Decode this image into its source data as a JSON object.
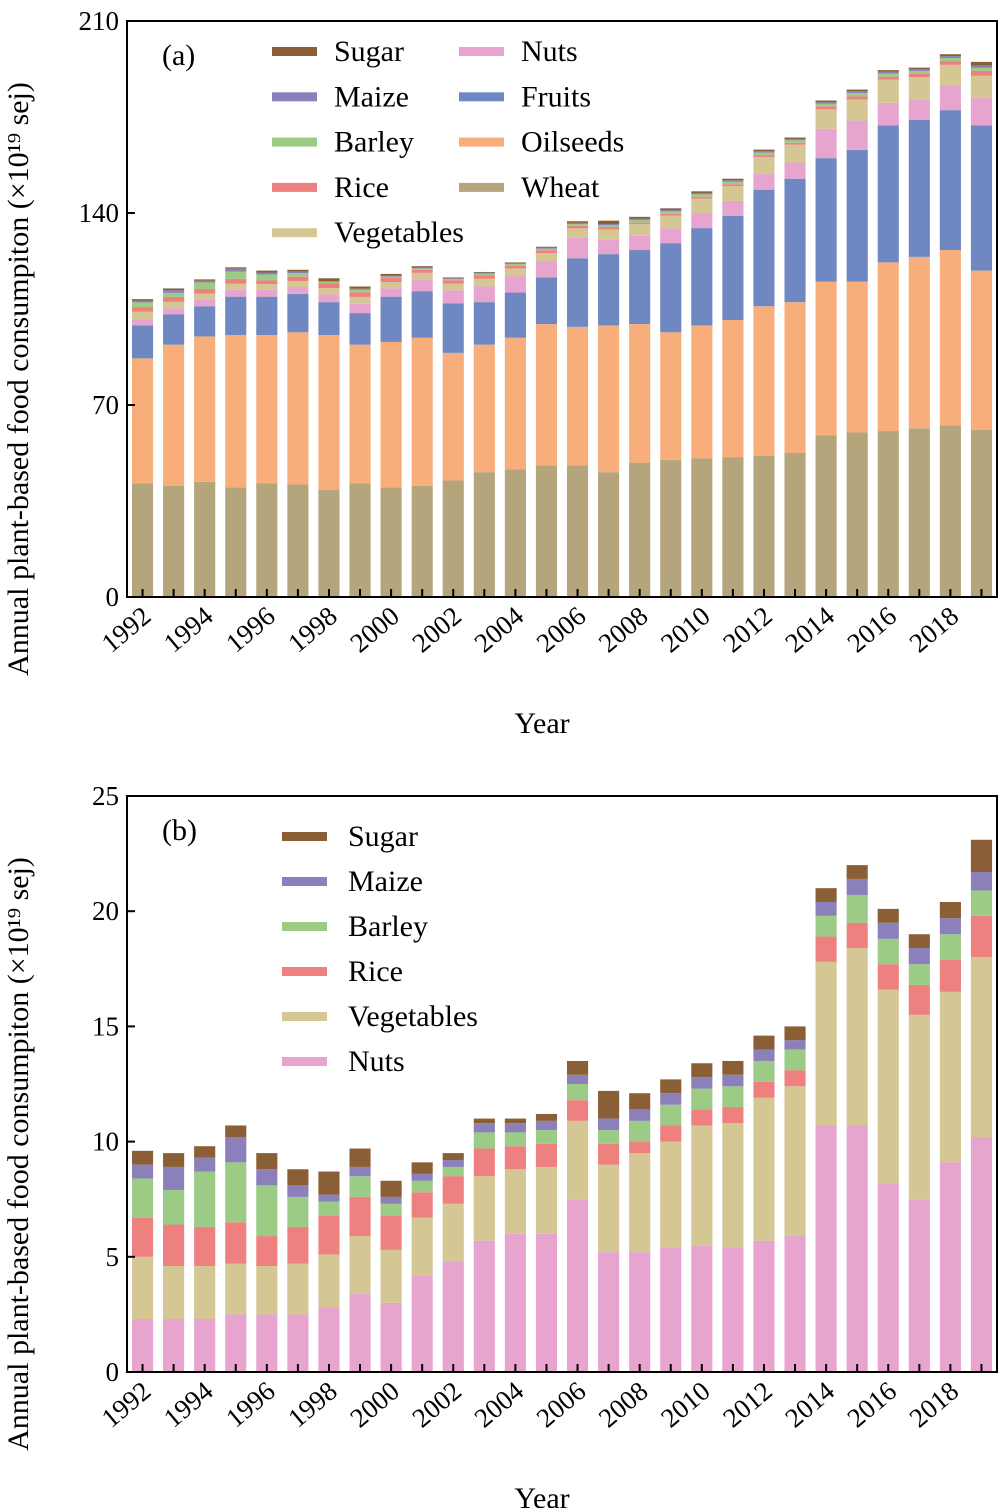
{
  "chart_data": [
    {
      "type": "bar",
      "stacked": true,
      "panel_label": "(a)",
      "xlabel": "Year",
      "ylabel": "Annual plant-based food consumpiton (×10¹⁹ sej)",
      "ylim": [
        0,
        210
      ],
      "yticks": [
        "0",
        "70",
        "140",
        "210"
      ],
      "xtick_labels": [
        "1992",
        "1994",
        "1996",
        "1998",
        "2000",
        "2002",
        "2004",
        "2006",
        "2008",
        "2010",
        "2012",
        "2014",
        "2016",
        "2018"
      ],
      "grid": false,
      "legend_position": "top-left",
      "categories": [
        1992,
        1993,
        1994,
        1995,
        1996,
        1997,
        1998,
        1999,
        2000,
        2001,
        2002,
        2003,
        2004,
        2005,
        2006,
        2007,
        2008,
        2009,
        2010,
        2011,
        2012,
        2013,
        2014,
        2015,
        2016,
        2017,
        2018,
        2019
      ],
      "series": [
        {
          "name": "Wheat",
          "color": "#b5a57c",
          "values": [
            41.5,
            40.5,
            42,
            40,
            41.5,
            41,
            39,
            41.5,
            40,
            40.5,
            42.5,
            45.5,
            46.5,
            48,
            48,
            45.5,
            49,
            50,
            50.5,
            51,
            51.5,
            52.5,
            59,
            60,
            60.5,
            61.5,
            62.5,
            61
          ]
        },
        {
          "name": "Oilseeds",
          "color": "#f8ae7b",
          "values": [
            45.5,
            51.5,
            53,
            55.5,
            54,
            55.5,
            56.5,
            50.5,
            53,
            54,
            46.5,
            46.5,
            48,
            51.5,
            50.5,
            53.5,
            50.5,
            46.5,
            48.5,
            50,
            54.5,
            55,
            56,
            55,
            61.5,
            62.5,
            64,
            58
          ]
        },
        {
          "name": "Fruits",
          "color": "#7088c1",
          "values": [
            12,
            11,
            11,
            14,
            14,
            14,
            12,
            11.5,
            16.5,
            17,
            18,
            15.5,
            16.5,
            17,
            25,
            26,
            27,
            32.5,
            35.5,
            38,
            42.5,
            45,
            45,
            48,
            50,
            50,
            51,
            53
          ]
        },
        {
          "name": "Nuts",
          "color": "#e6a4ce",
          "values": [
            2.3,
            2.3,
            2.3,
            2.5,
            2.5,
            2.5,
            2.8,
            3.4,
            3,
            4.2,
            4.8,
            5.7,
            6,
            6,
            7.5,
            5.2,
            5.2,
            5.4,
            5.5,
            5.4,
            5.7,
            5.9,
            10.7,
            10.7,
            8.2,
            7.5,
            9.1,
            10.2
          ]
        },
        {
          "name": "Vegetables",
          "color": "#d4c794",
          "values": [
            2.7,
            2.3,
            2.3,
            2.2,
            2.1,
            2.2,
            2.3,
            2.5,
            2.3,
            2.5,
            2.5,
            2.8,
            2.8,
            2.9,
            3.4,
            3.8,
            4.3,
            4.6,
            5.2,
            5.4,
            6.2,
            6.5,
            7.1,
            7.7,
            8.4,
            8,
            7.4,
            7.8
          ]
        },
        {
          "name": "Rice",
          "color": "#ef8080",
          "values": [
            1.7,
            1.8,
            1.7,
            1.8,
            1.3,
            1.6,
            1.7,
            1.7,
            1.5,
            1.1,
            1.2,
            1.2,
            1,
            1,
            0.9,
            0.9,
            0.5,
            0.7,
            0.7,
            0.7,
            0.7,
            0.7,
            1.1,
            1.1,
            1.1,
            1.3,
            1.4,
            1.8
          ]
        },
        {
          "name": "Barley",
          "color": "#9ccb86",
          "values": [
            1.7,
            1.5,
            2.4,
            2.6,
            2.2,
            1.3,
            0.6,
            0.9,
            0.5,
            0.5,
            0.4,
            0.7,
            0.6,
            0.6,
            0.7,
            0.6,
            0.9,
            0.9,
            0.9,
            0.9,
            0.9,
            0.9,
            0.9,
            1.2,
            1.1,
            0.9,
            1.1,
            1.1
          ]
        },
        {
          "name": "Maize",
          "color": "#8b80ba",
          "values": [
            0.6,
            1,
            0.6,
            1.1,
            0.7,
            0.5,
            0.3,
            0.4,
            0.3,
            0.3,
            0.3,
            0.4,
            0.4,
            0.4,
            0.4,
            0.5,
            0.5,
            0.5,
            0.5,
            0.5,
            0.5,
            0.4,
            0.6,
            0.7,
            0.7,
            0.7,
            0.7,
            0.8
          ]
        },
        {
          "name": "Sugar",
          "color": "#8b5f35",
          "values": [
            0.6,
            0.6,
            0.5,
            0.5,
            0.7,
            0.7,
            1,
            0.8,
            0.7,
            0.5,
            0.3,
            0.2,
            0.2,
            0.3,
            0.6,
            1.2,
            0.7,
            0.6,
            0.6,
            0.6,
            0.6,
            0.6,
            0.6,
            0.6,
            0.6,
            0.6,
            0.7,
            1.4
          ]
        }
      ],
      "legend": [
        {
          "name": "Sugar",
          "color": "#8b5f35"
        },
        {
          "name": "Nuts",
          "color": "#e6a4ce"
        },
        {
          "name": "Maize",
          "color": "#8b80ba"
        },
        {
          "name": "Fruits",
          "color": "#7088c1"
        },
        {
          "name": "Barley",
          "color": "#9ccb86"
        },
        {
          "name": "Oilseeds",
          "color": "#f8ae7b"
        },
        {
          "name": "Rice",
          "color": "#ef8080"
        },
        {
          "name": "Wheat",
          "color": "#b5a57c"
        },
        {
          "name": "Vegetables",
          "color": "#d4c794"
        }
      ]
    },
    {
      "type": "bar",
      "stacked": true,
      "panel_label": "(b)",
      "xlabel": "Year",
      "ylabel": "Annual plant-based food consumpiton (×10¹⁹ sej)",
      "ylim": [
        0,
        25
      ],
      "yticks": [
        "0",
        "5",
        "10",
        "15",
        "20",
        "25"
      ],
      "xtick_labels": [
        "1992",
        "1994",
        "1996",
        "1998",
        "2000",
        "2002",
        "2004",
        "2006",
        "2008",
        "2010",
        "2012",
        "2014",
        "2016",
        "2018"
      ],
      "grid": false,
      "legend_position": "top-left",
      "categories": [
        1992,
        1993,
        1994,
        1995,
        1996,
        1997,
        1998,
        1999,
        2000,
        2001,
        2002,
        2003,
        2004,
        2005,
        2006,
        2007,
        2008,
        2009,
        2010,
        2011,
        2012,
        2013,
        2014,
        2015,
        2016,
        2017,
        2018,
        2019
      ],
      "series": [
        {
          "name": "Nuts",
          "color": "#e6a4ce",
          "values": [
            2.3,
            2.3,
            2.3,
            2.5,
            2.5,
            2.5,
            2.8,
            3.4,
            3,
            4.2,
            4.8,
            5.7,
            6,
            6,
            7.5,
            5.2,
            5.2,
            5.4,
            5.5,
            5.4,
            5.7,
            5.9,
            10.7,
            10.7,
            8.2,
            7.5,
            9.1,
            10.2
          ]
        },
        {
          "name": "Vegetables",
          "color": "#d4c794",
          "values": [
            2.7,
            2.3,
            2.3,
            2.2,
            2.1,
            2.2,
            2.3,
            2.5,
            2.3,
            2.5,
            2.5,
            2.8,
            2.8,
            2.9,
            3.4,
            3.8,
            4.3,
            4.6,
            5.2,
            5.4,
            6.2,
            6.5,
            7.1,
            7.7,
            8.4,
            8,
            7.4,
            7.8
          ]
        },
        {
          "name": "Rice",
          "color": "#ef8080",
          "values": [
            1.7,
            1.8,
            1.7,
            1.8,
            1.3,
            1.6,
            1.7,
            1.7,
            1.5,
            1.1,
            1.2,
            1.2,
            1,
            1,
            0.9,
            0.9,
            0.5,
            0.7,
            0.7,
            0.7,
            0.7,
            0.7,
            1.1,
            1.1,
            1.1,
            1.3,
            1.4,
            1.8
          ]
        },
        {
          "name": "Barley",
          "color": "#9ccb86",
          "values": [
            1.7,
            1.5,
            2.4,
            2.6,
            2.2,
            1.3,
            0.6,
            0.9,
            0.5,
            0.5,
            0.4,
            0.7,
            0.6,
            0.6,
            0.7,
            0.6,
            0.9,
            0.9,
            0.9,
            0.9,
            0.9,
            0.9,
            0.9,
            1.2,
            1.1,
            0.9,
            1.1,
            1.1
          ]
        },
        {
          "name": "Maize",
          "color": "#8b80ba",
          "values": [
            0.6,
            1,
            0.6,
            1.1,
            0.7,
            0.5,
            0.3,
            0.4,
            0.3,
            0.3,
            0.3,
            0.4,
            0.4,
            0.4,
            0.4,
            0.5,
            0.5,
            0.5,
            0.5,
            0.5,
            0.5,
            0.4,
            0.6,
            0.7,
            0.7,
            0.7,
            0.7,
            0.8
          ]
        },
        {
          "name": "Sugar",
          "color": "#8b5f35",
          "values": [
            0.6,
            0.6,
            0.5,
            0.5,
            0.7,
            0.7,
            1,
            0.8,
            0.7,
            0.5,
            0.3,
            0.2,
            0.2,
            0.3,
            0.6,
            1.2,
            0.7,
            0.6,
            0.6,
            0.6,
            0.6,
            0.6,
            0.6,
            0.6,
            0.6,
            0.6,
            0.7,
            1.4
          ]
        }
      ],
      "legend": [
        {
          "name": "Sugar",
          "color": "#8b5f35"
        },
        {
          "name": "Maize",
          "color": "#8b80ba"
        },
        {
          "name": "Barley",
          "color": "#9ccb86"
        },
        {
          "name": "Rice",
          "color": "#ef8080"
        },
        {
          "name": "Vegetables",
          "color": "#d4c794"
        },
        {
          "name": "Nuts",
          "color": "#e6a4ce"
        }
      ]
    }
  ]
}
